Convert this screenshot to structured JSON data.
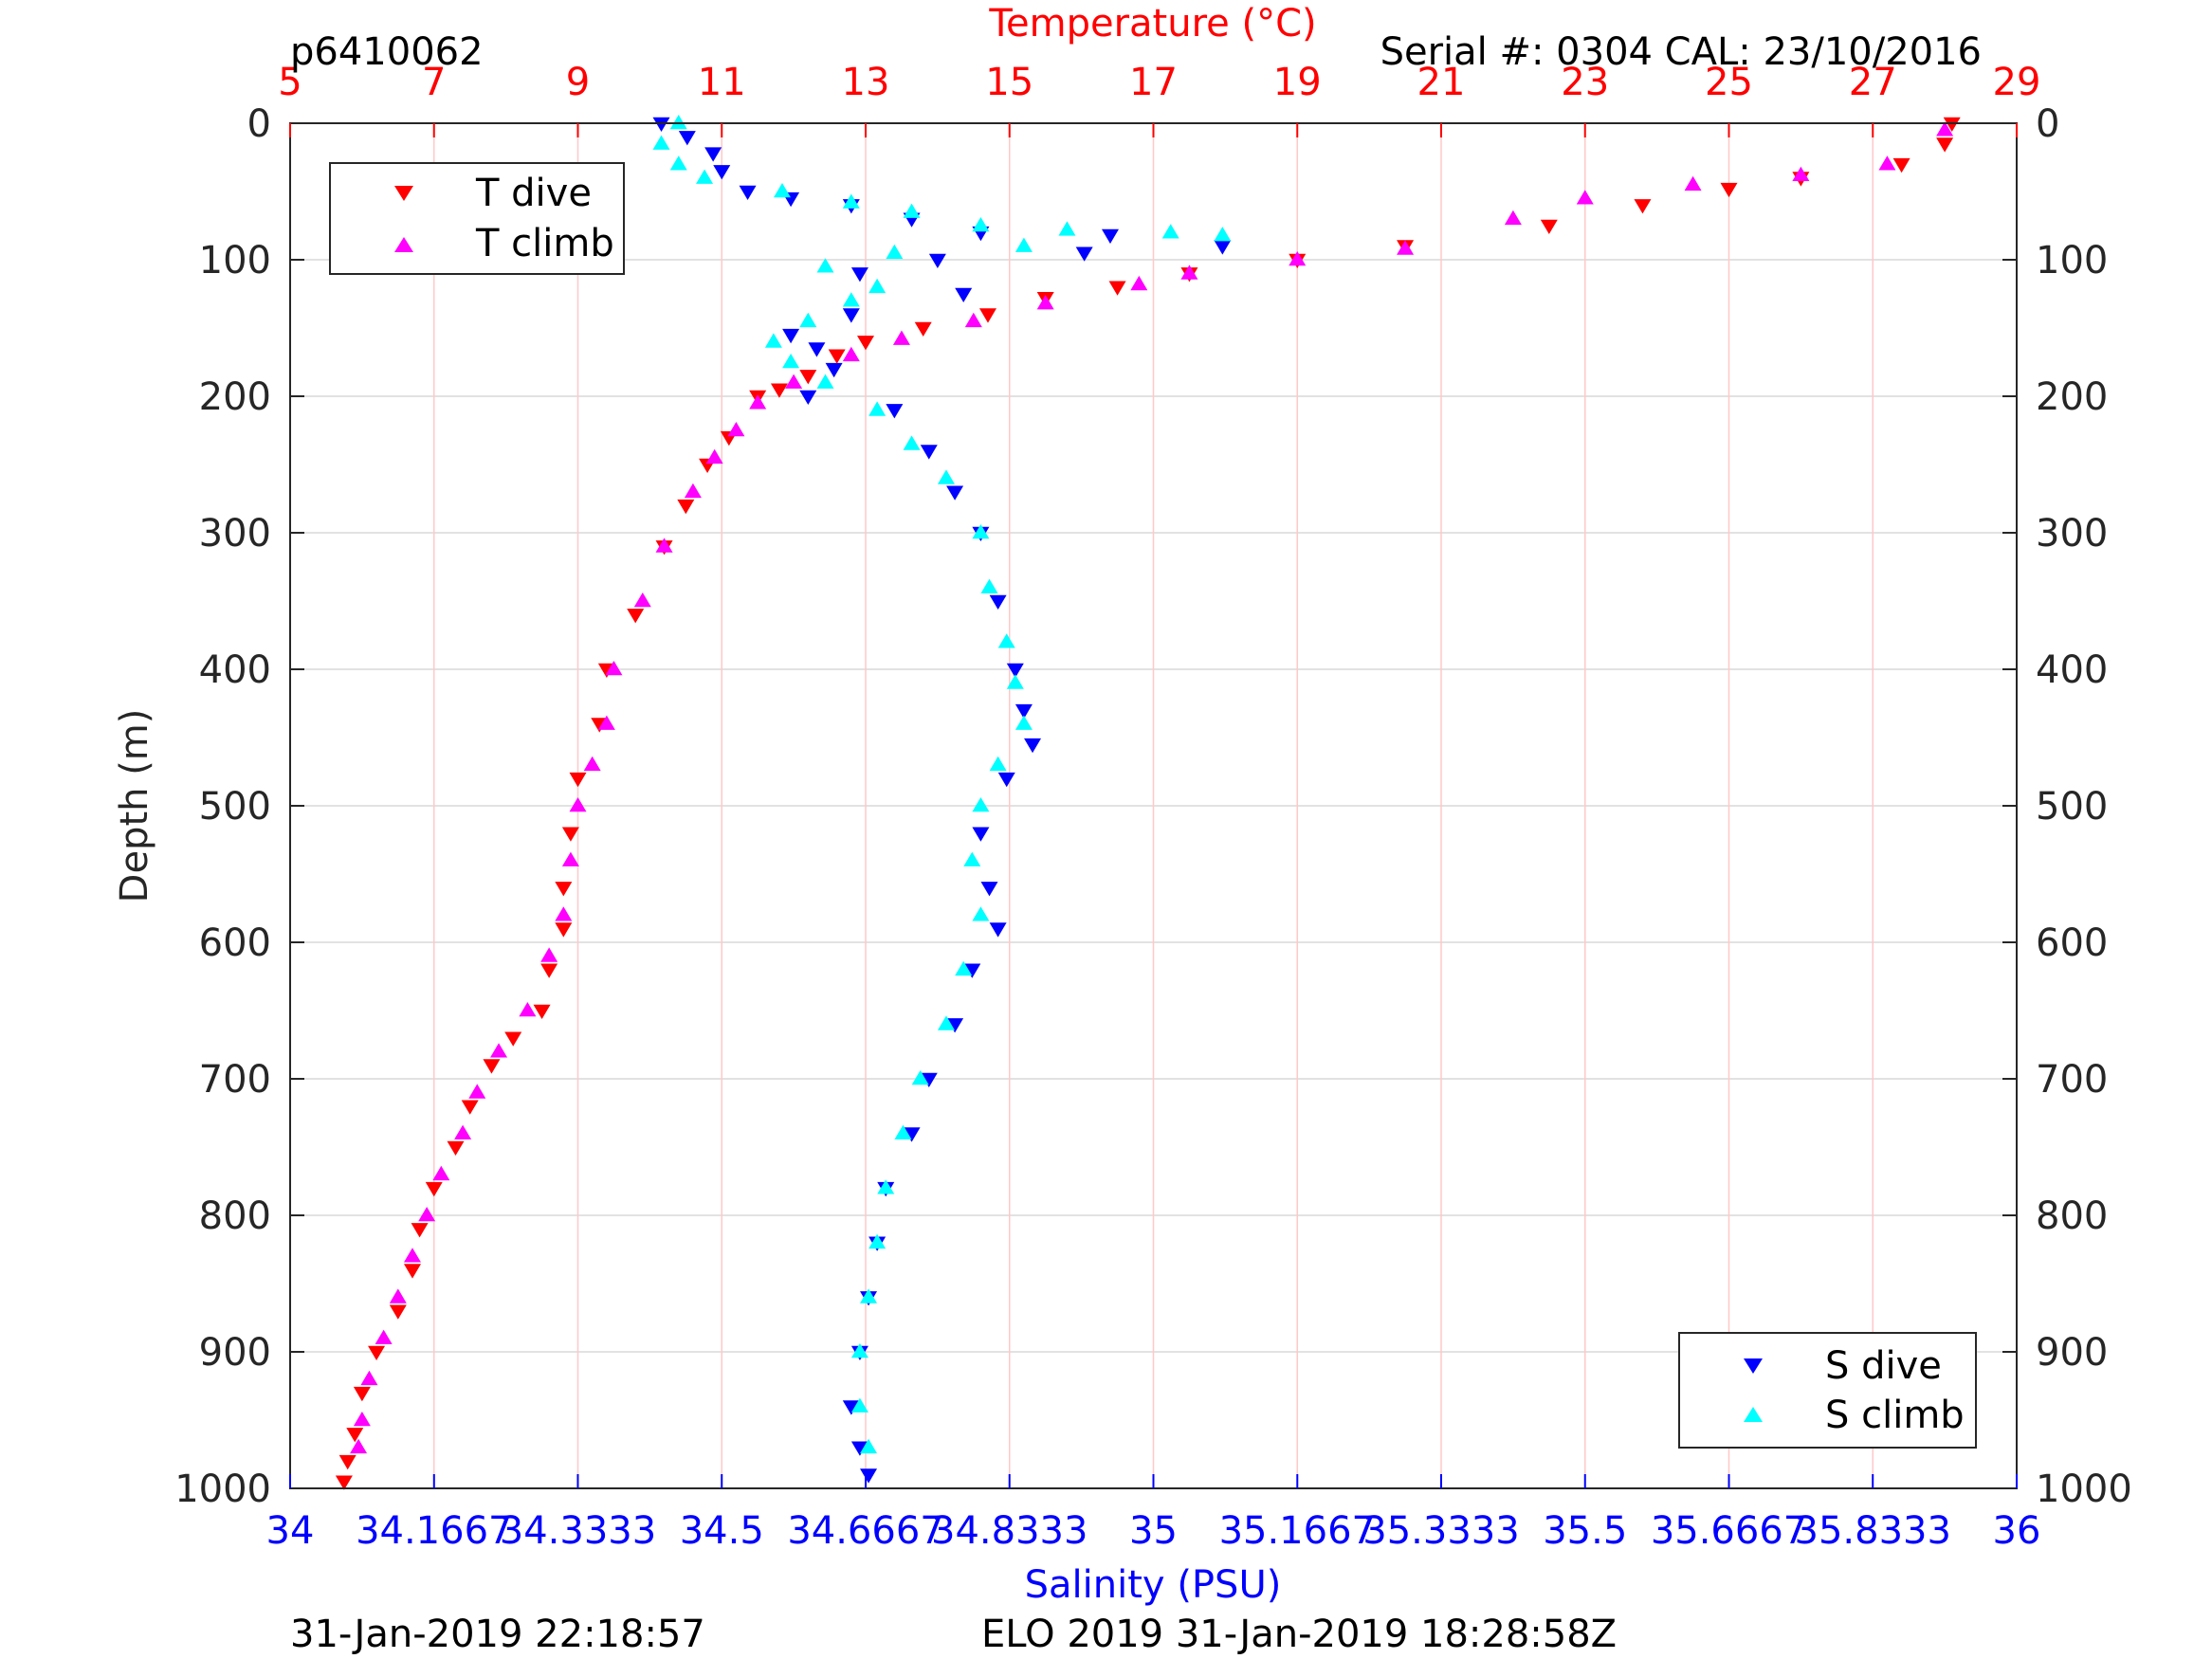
{
  "header": {
    "profile_id": "p6410062",
    "serial_cal": "Serial #: 0304  CAL: 23/10/2016"
  },
  "footer": {
    "left_timestamp": "31-Jan-2019 22:18:57",
    "right_mission": "ELO 2019 31-Jan-2019 18:28:58Z"
  },
  "colors": {
    "temperature_axis": "#ff0000",
    "salinity_axis": "#0000ff",
    "t_dive": "#ff0000",
    "t_climb": "#ff00ff",
    "s_dive": "#0000ff",
    "s_climb": "#00ffff",
    "grid_depth": "#d9d9d9",
    "grid_temp": "#ffc8c8"
  },
  "chart_data": {
    "type": "scatter",
    "y_axis": {
      "label": "Depth (m)",
      "ticks": [
        "0",
        "100",
        "200",
        "300",
        "400",
        "500",
        "600",
        "700",
        "800",
        "900",
        "1000"
      ],
      "range": [
        0,
        1000
      ],
      "reversed": true
    },
    "temperature_axis": {
      "label": "Temperature (°C)",
      "ticks": [
        "5",
        "7",
        "9",
        "11",
        "13",
        "15",
        "17",
        "19",
        "21",
        "23",
        "25",
        "27",
        "29"
      ],
      "range": [
        5,
        29
      ],
      "position": "top"
    },
    "salinity_axis": {
      "label": "Salinity (PSU)",
      "ticks": [
        "34",
        "34.1667",
        "34.3333",
        "34.5",
        "34.6667",
        "34.8333",
        "35",
        "35.1667",
        "35.3333",
        "35.5",
        "35.6667",
        "35.8333",
        "36"
      ],
      "range": [
        34,
        36
      ],
      "position": "bottom"
    },
    "grid": true,
    "legends": [
      {
        "placement": "top-left",
        "entries": [
          "T dive",
          "T climb"
        ]
      },
      {
        "placement": "bottom-right",
        "entries": [
          "S dive",
          "S climb"
        ]
      }
    ],
    "series": [
      {
        "name": "T dive",
        "axis": "temperature",
        "marker": "triangle-down",
        "points": [
          [
            28.1,
            0
          ],
          [
            28.0,
            15
          ],
          [
            27.4,
            30
          ],
          [
            26.0,
            40
          ],
          [
            25.0,
            48
          ],
          [
            23.8,
            60
          ],
          [
            22.5,
            75
          ],
          [
            20.5,
            90
          ],
          [
            19.0,
            100
          ],
          [
            17.5,
            110
          ],
          [
            16.5,
            120
          ],
          [
            15.5,
            128
          ],
          [
            14.7,
            140
          ],
          [
            13.8,
            150
          ],
          [
            13.0,
            160
          ],
          [
            12.6,
            170
          ],
          [
            12.2,
            185
          ],
          [
            11.8,
            195
          ],
          [
            11.5,
            200
          ],
          [
            11.1,
            230
          ],
          [
            10.8,
            250
          ],
          [
            10.5,
            280
          ],
          [
            10.2,
            310
          ],
          [
            9.8,
            360
          ],
          [
            9.4,
            400
          ],
          [
            9.3,
            440
          ],
          [
            9.0,
            480
          ],
          [
            8.9,
            520
          ],
          [
            8.8,
            560
          ],
          [
            8.8,
            590
          ],
          [
            8.6,
            620
          ],
          [
            8.5,
            650
          ],
          [
            8.1,
            670
          ],
          [
            7.8,
            690
          ],
          [
            7.5,
            720
          ],
          [
            7.3,
            750
          ],
          [
            7.0,
            780
          ],
          [
            6.8,
            810
          ],
          [
            6.7,
            840
          ],
          [
            6.5,
            870
          ],
          [
            6.2,
            900
          ],
          [
            6.0,
            930
          ],
          [
            5.9,
            960
          ],
          [
            5.8,
            980
          ],
          [
            5.75,
            995
          ]
        ]
      },
      {
        "name": "T climb",
        "axis": "temperature",
        "marker": "triangle-up",
        "points": [
          [
            28.0,
            5
          ],
          [
            27.2,
            30
          ],
          [
            26.0,
            38
          ],
          [
            24.5,
            45
          ],
          [
            23.0,
            55
          ],
          [
            22.0,
            70
          ],
          [
            20.5,
            92
          ],
          [
            19.0,
            100
          ],
          [
            17.5,
            110
          ],
          [
            16.8,
            118
          ],
          [
            15.5,
            132
          ],
          [
            14.5,
            145
          ],
          [
            13.5,
            158
          ],
          [
            12.8,
            170
          ],
          [
            12.0,
            190
          ],
          [
            11.5,
            205
          ],
          [
            11.2,
            225
          ],
          [
            10.9,
            245
          ],
          [
            10.6,
            270
          ],
          [
            10.2,
            310
          ],
          [
            9.9,
            350
          ],
          [
            9.5,
            400
          ],
          [
            9.4,
            440
          ],
          [
            9.2,
            470
          ],
          [
            9.0,
            500
          ],
          [
            8.9,
            540
          ],
          [
            8.8,
            580
          ],
          [
            8.6,
            610
          ],
          [
            8.3,
            650
          ],
          [
            7.9,
            680
          ],
          [
            7.6,
            710
          ],
          [
            7.4,
            740
          ],
          [
            7.1,
            770
          ],
          [
            6.9,
            800
          ],
          [
            6.7,
            830
          ],
          [
            6.5,
            860
          ],
          [
            6.3,
            890
          ],
          [
            6.1,
            920
          ],
          [
            6.0,
            950
          ],
          [
            5.95,
            970
          ]
        ]
      },
      {
        "name": "S dive",
        "axis": "salinity",
        "marker": "triangle-down",
        "points": [
          [
            34.43,
            0
          ],
          [
            34.46,
            10
          ],
          [
            34.49,
            22
          ],
          [
            34.5,
            35
          ],
          [
            34.53,
            50
          ],
          [
            34.58,
            55
          ],
          [
            34.65,
            60
          ],
          [
            34.72,
            70
          ],
          [
            34.8,
            80
          ],
          [
            34.95,
            82
          ],
          [
            35.08,
            90
          ],
          [
            34.92,
            95
          ],
          [
            34.75,
            100
          ],
          [
            34.66,
            110
          ],
          [
            34.78,
            125
          ],
          [
            34.65,
            140
          ],
          [
            34.58,
            155
          ],
          [
            34.61,
            165
          ],
          [
            34.63,
            180
          ],
          [
            34.6,
            200
          ],
          [
            34.7,
            210
          ],
          [
            34.74,
            240
          ],
          [
            34.77,
            270
          ],
          [
            34.8,
            300
          ],
          [
            34.82,
            350
          ],
          [
            34.84,
            400
          ],
          [
            34.85,
            430
          ],
          [
            34.86,
            455
          ],
          [
            34.83,
            480
          ],
          [
            34.8,
            520
          ],
          [
            34.81,
            560
          ],
          [
            34.82,
            590
          ],
          [
            34.79,
            620
          ],
          [
            34.77,
            660
          ],
          [
            34.74,
            700
          ],
          [
            34.72,
            740
          ],
          [
            34.69,
            780
          ],
          [
            34.68,
            820
          ],
          [
            34.67,
            860
          ],
          [
            34.66,
            900
          ],
          [
            34.65,
            940
          ],
          [
            34.66,
            970
          ],
          [
            34.67,
            990
          ]
        ]
      },
      {
        "name": "S climb",
        "axis": "salinity",
        "marker": "triangle-up",
        "points": [
          [
            34.45,
            0
          ],
          [
            34.43,
            15
          ],
          [
            34.45,
            30
          ],
          [
            34.48,
            40
          ],
          [
            34.57,
            50
          ],
          [
            34.65,
            58
          ],
          [
            34.72,
            65
          ],
          [
            34.8,
            75
          ],
          [
            34.9,
            78
          ],
          [
            35.02,
            80
          ],
          [
            35.08,
            82
          ],
          [
            34.85,
            90
          ],
          [
            34.7,
            95
          ],
          [
            34.62,
            105
          ],
          [
            34.68,
            120
          ],
          [
            34.65,
            130
          ],
          [
            34.6,
            145
          ],
          [
            34.56,
            160
          ],
          [
            34.58,
            175
          ],
          [
            34.62,
            190
          ],
          [
            34.68,
            210
          ],
          [
            34.72,
            235
          ],
          [
            34.76,
            260
          ],
          [
            34.8,
            300
          ],
          [
            34.81,
            340
          ],
          [
            34.83,
            380
          ],
          [
            34.84,
            410
          ],
          [
            34.85,
            440
          ],
          [
            34.82,
            470
          ],
          [
            34.8,
            500
          ],
          [
            34.79,
            540
          ],
          [
            34.8,
            580
          ],
          [
            34.78,
            620
          ],
          [
            34.76,
            660
          ],
          [
            34.73,
            700
          ],
          [
            34.71,
            740
          ],
          [
            34.69,
            780
          ],
          [
            34.68,
            820
          ],
          [
            34.67,
            860
          ],
          [
            34.66,
            900
          ],
          [
            34.66,
            940
          ],
          [
            34.67,
            970
          ]
        ]
      }
    ]
  }
}
